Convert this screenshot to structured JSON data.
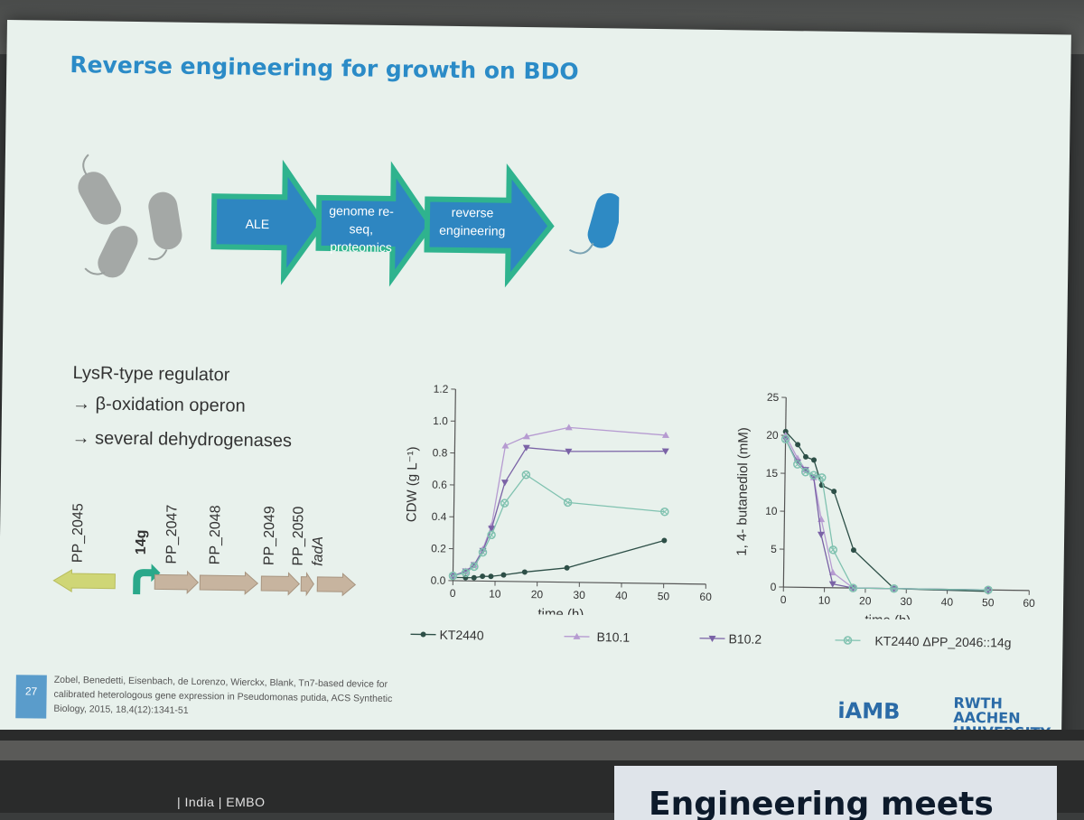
{
  "slide": {
    "title": "Reverse engineering for growth on BDO",
    "steps": [
      "ALE",
      "genome re-seq,\nproteomics",
      "reverse\nengineering"
    ],
    "bullets": [
      "LysR-type regulator",
      "→ β-oxidation operon",
      "→ several dehydrogenases"
    ],
    "genes": [
      "PP_2045",
      "14g",
      "PP_2047",
      "PP_2048",
      "PP_2049",
      "PP_2050",
      "fadA"
    ],
    "reference": "Zobel, Benedetti, Eisenbach, de Lorenzo, Wierckx, Blank, Tn7-based device for calibrated heterologous gene expression in Pseudomonas putida, ACS Synthetic Biology, 2015, 18,4(12):1341-51",
    "page_number": "27",
    "logo_left": "iAMB",
    "logo_right_line1": "RWTH AACHEN",
    "logo_right_line2": "UNIVERSITY",
    "legend": [
      "KT2440",
      "B10.1",
      "B10.2",
      "KT2440 ΔPP_2046::14g"
    ]
  },
  "room": {
    "footer_text": "| India | EMBO",
    "banner_text": "Engineering meets"
  },
  "chart_data": [
    {
      "type": "line",
      "xlabel": "time (h)",
      "ylabel": "CDW (g L⁻¹)",
      "xlim": [
        0,
        60
      ],
      "ylim": [
        0,
        1.2
      ],
      "xticks": [
        "0",
        "10",
        "20",
        "30",
        "40",
        "50",
        "60"
      ],
      "yticks": [
        "0.0",
        "0.2",
        "0.4",
        "0.6",
        "0.8",
        "1.0",
        "1.2"
      ],
      "series": [
        {
          "name": "KT2440",
          "x": [
            0,
            3,
            5,
            7,
            9,
            12,
            17,
            27,
            50
          ],
          "y": [
            0.02,
            0.02,
            0.02,
            0.03,
            0.03,
            0.04,
            0.06,
            0.09,
            0.27
          ]
        },
        {
          "name": "B10.1",
          "x": [
            0,
            3,
            5,
            7,
            9,
            12,
            17,
            27,
            50
          ],
          "y": [
            0.03,
            0.06,
            0.1,
            0.2,
            0.35,
            0.85,
            0.91,
            0.97,
            0.93
          ]
        },
        {
          "name": "B10.2",
          "x": [
            0,
            3,
            5,
            7,
            9,
            12,
            17,
            27,
            50
          ],
          "y": [
            0.03,
            0.06,
            0.1,
            0.19,
            0.33,
            0.62,
            0.84,
            0.82,
            0.83
          ]
        },
        {
          "name": "KT2440 ΔPP_2046::14g",
          "x": [
            0,
            3,
            5,
            7,
            9,
            12,
            17,
            27,
            50
          ],
          "y": [
            0.03,
            0.05,
            0.09,
            0.18,
            0.29,
            0.49,
            0.67,
            0.5,
            0.45
          ]
        }
      ]
    },
    {
      "type": "line",
      "xlabel": "time (h)",
      "ylabel": "1, 4- butanediol (mM)",
      "xlim": [
        0,
        60
      ],
      "ylim": [
        0,
        25
      ],
      "xticks": [
        "0",
        "10",
        "20",
        "30",
        "40",
        "50",
        "60"
      ],
      "yticks": [
        "0",
        "5",
        "10",
        "15",
        "20",
        "25"
      ],
      "series": [
        {
          "name": "KT2440",
          "x": [
            0,
            3,
            5,
            7,
            9,
            12,
            17,
            27,
            50
          ],
          "y": [
            20.5,
            18.8,
            17.2,
            16.8,
            13.5,
            12.7,
            5.0,
            0.0,
            -0.2
          ]
        },
        {
          "name": "B10.1",
          "x": [
            0,
            3,
            5,
            7,
            9,
            12,
            17,
            27,
            50
          ],
          "y": [
            20.0,
            17.0,
            15.5,
            14.5,
            9.0,
            2.0,
            0.0,
            0.0,
            0.0
          ]
        },
        {
          "name": "B10.2",
          "x": [
            0,
            3,
            5,
            7,
            9,
            12,
            17,
            27,
            50
          ],
          "y": [
            19.5,
            16.5,
            15.5,
            14.5,
            7.0,
            0.5,
            0.0,
            0.0,
            0.0
          ]
        },
        {
          "name": "KT2440 ΔPP_2046::14g",
          "x": [
            0,
            3,
            5,
            7,
            9,
            12,
            17,
            27,
            50
          ],
          "y": [
            19.5,
            16.2,
            15.2,
            14.8,
            14.5,
            5.0,
            0.0,
            0.0,
            0.0
          ]
        }
      ]
    }
  ],
  "colors": {
    "title": "#2b8bc7",
    "arrow_fill": "#2e86c1",
    "arrow_border": "#2fb38e",
    "bacterium_gray": "#a4a8a6",
    "bacterium_blue": "#2e8ac4",
    "series": [
      "#2d4f47",
      "#b69bd1",
      "#7a62a6",
      "#80c2b0"
    ]
  }
}
